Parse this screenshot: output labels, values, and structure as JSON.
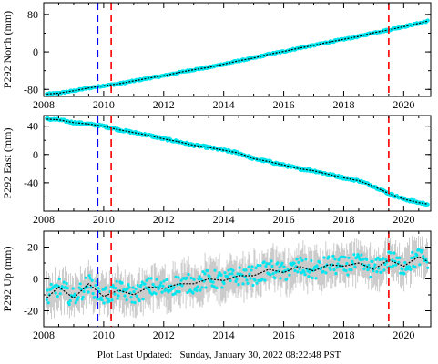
{
  "footer": {
    "label": "Plot Last Updated:",
    "timestamp": "Sunday, January 30, 2022 08:22:48 PST"
  },
  "colors": {
    "data_points": "#00e5ee",
    "error_bars": "#a9a9a9",
    "model_line": "#000000",
    "event_blue": "#0000ff",
    "event_red": "#ff0000"
  },
  "chart_data": [
    {
      "type": "scatter",
      "ylabel": "P292 North (mm)",
      "xlim": [
        2008.0,
        2020.9
      ],
      "ylim": [
        -95,
        105
      ],
      "xticks": [
        2008,
        2010,
        2012,
        2014,
        2016,
        2018,
        2020
      ],
      "yticks": [
        -80,
        0,
        80
      ],
      "series": [
        {
          "x": [
            2008.1,
            2008.5,
            2009.0,
            2009.5,
            2010.0,
            2010.5,
            2011.0,
            2011.5,
            2012.0,
            2012.5,
            2013.0,
            2013.5,
            2014.0,
            2014.5,
            2015.0,
            2015.5,
            2016.0,
            2016.5,
            2017.0,
            2017.5,
            2018.0,
            2018.5,
            2019.0,
            2019.5,
            2020.0,
            2020.5,
            2020.8
          ],
          "y": [
            -90,
            -88,
            -83,
            -77,
            -72,
            -68,
            -62,
            -56,
            -51,
            -44,
            -38,
            -33,
            -26,
            -19,
            -13,
            -5,
            1,
            8,
            14,
            21,
            27,
            33,
            41,
            47,
            54,
            61,
            66
          ]
        }
      ],
      "vlines": [
        {
          "x": 2009.8,
          "color": "blue",
          "style": "dashed"
        },
        {
          "x": 2010.25,
          "color": "red",
          "style": "dashed"
        },
        {
          "x": 2019.5,
          "color": "red",
          "style": "dashed"
        }
      ]
    },
    {
      "type": "scatter",
      "ylabel": "P292 East (mm)",
      "xlim": [
        2008.0,
        2020.9
      ],
      "ylim": [
        -80,
        55
      ],
      "xticks": [
        2008,
        2010,
        2012,
        2014,
        2016,
        2018,
        2020
      ],
      "yticks": [
        -40,
        0,
        40
      ],
      "series": [
        {
          "x": [
            2008.1,
            2008.5,
            2009.0,
            2009.5,
            2010.0,
            2010.5,
            2011.0,
            2011.5,
            2012.0,
            2012.5,
            2013.0,
            2013.5,
            2014.0,
            2014.5,
            2015.0,
            2015.5,
            2016.0,
            2016.5,
            2017.0,
            2017.5,
            2018.0,
            2018.5,
            2019.0,
            2019.5,
            2020.0,
            2020.5,
            2020.8
          ],
          "y": [
            50,
            49,
            45,
            43,
            40,
            35,
            31,
            27,
            22,
            18,
            13,
            10,
            6,
            2,
            -6,
            -10,
            -15,
            -20,
            -23,
            -28,
            -33,
            -37,
            -45,
            -55,
            -63,
            -68,
            -70
          ]
        }
      ],
      "vlines": [
        {
          "x": 2009.8,
          "color": "blue",
          "style": "dashed"
        },
        {
          "x": 2010.25,
          "color": "red",
          "style": "dashed"
        },
        {
          "x": 2019.5,
          "color": "red",
          "style": "dashed"
        }
      ]
    },
    {
      "type": "scatter",
      "ylabel": "P292 Up (mm)",
      "xlim": [
        2008.0,
        2020.9
      ],
      "ylim": [
        -30,
        30
      ],
      "xticks": [
        2008,
        2010,
        2012,
        2014,
        2016,
        2018,
        2020
      ],
      "yticks": [
        -20,
        0,
        20
      ],
      "series": [
        {
          "x": [
            2008.1,
            2008.5,
            2009.0,
            2009.5,
            2010.0,
            2010.5,
            2011.0,
            2011.5,
            2012.0,
            2012.5,
            2013.0,
            2013.5,
            2014.0,
            2014.5,
            2015.0,
            2015.5,
            2016.0,
            2016.5,
            2017.0,
            2017.5,
            2018.0,
            2018.5,
            2019.0,
            2019.5,
            2020.0,
            2020.5,
            2020.8
          ],
          "y": [
            -12,
            -5,
            -12,
            -3,
            -11,
            -7,
            -10,
            -5,
            -6,
            -3,
            -3,
            0,
            -1,
            2,
            2,
            6,
            4,
            8,
            5,
            9,
            8,
            10,
            6,
            12,
            8,
            14,
            11
          ],
          "error": 8
        }
      ],
      "vlines": [
        {
          "x": 2009.8,
          "color": "blue",
          "style": "dashed"
        },
        {
          "x": 2010.25,
          "color": "red",
          "style": "dashed"
        },
        {
          "x": 2019.5,
          "color": "red",
          "style": "dashed"
        }
      ]
    }
  ]
}
